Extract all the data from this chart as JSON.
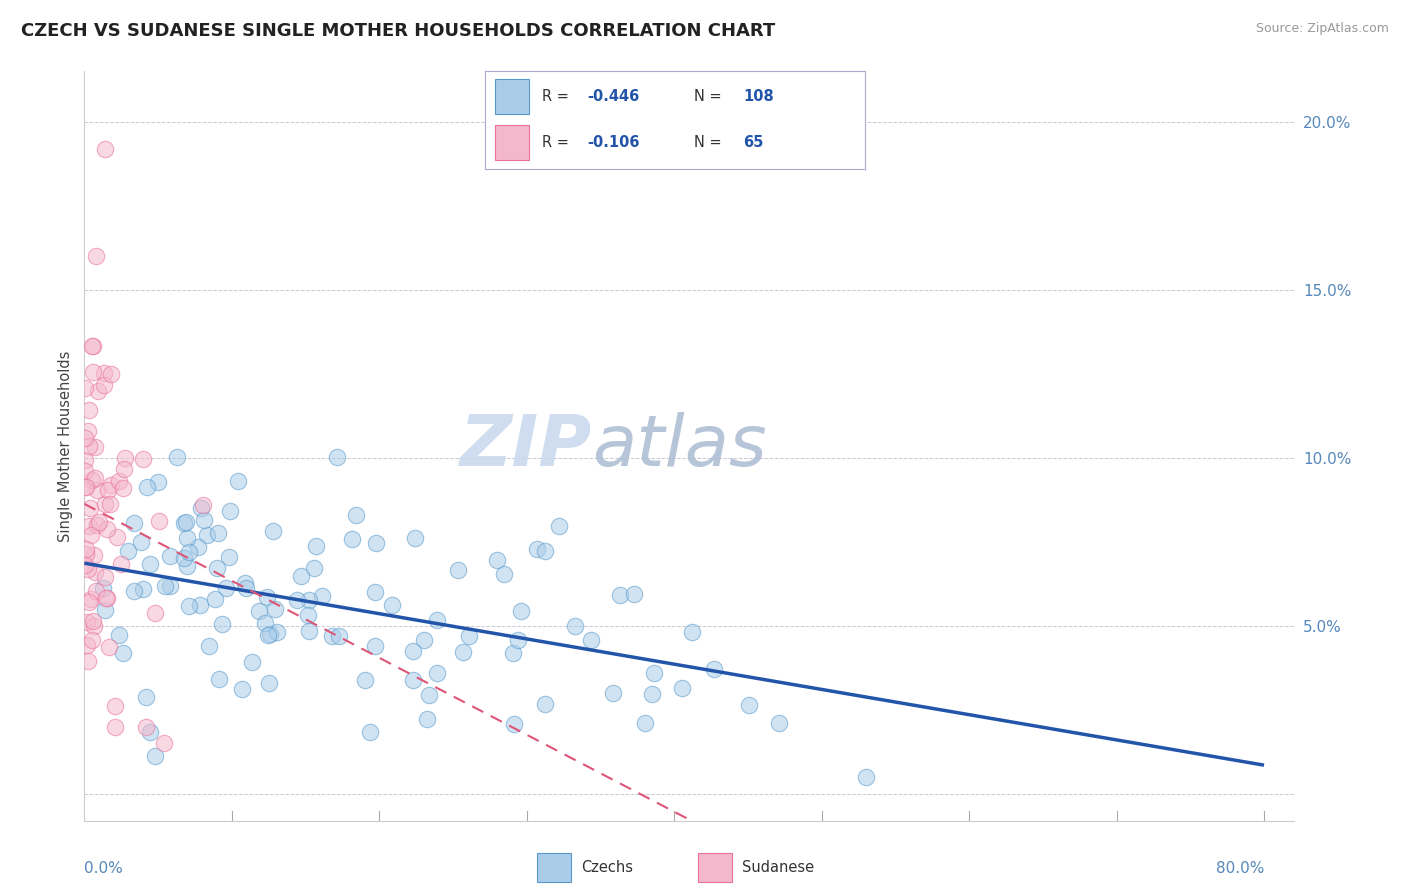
{
  "title": "CZECH VS SUDANESE SINGLE MOTHER HOUSEHOLDS CORRELATION CHART",
  "source": "Source: ZipAtlas.com",
  "ylabel": "Single Mother Households",
  "xlim": [
    0.0,
    0.82
  ],
  "ylim": [
    -0.008,
    0.215
  ],
  "yticks": [
    0.0,
    0.05,
    0.1,
    0.15,
    0.2
  ],
  "ytick_labels": [
    "",
    "5.0%",
    "10.0%",
    "15.0%",
    "20.0%"
  ],
  "czech_R": -0.446,
  "czech_N": 108,
  "sudanese_R": -0.106,
  "sudanese_N": 65,
  "czech_color": "#aacce8",
  "sudanese_color": "#f4b8cc",
  "czech_edge_color": "#5599cc",
  "sudanese_edge_color": "#e87099",
  "czech_line_color": "#2255aa",
  "sudanese_line_color": "#dd5577",
  "watermark_zip_color": "#c8d8ee",
  "watermark_atlas_color": "#aabbd0",
  "title_fontsize": 13,
  "axis_label_color": "#5588bb",
  "grid_color": "#bbbbcc",
  "background_color": "#ffffff",
  "legend_border_color": "#aaaacc"
}
